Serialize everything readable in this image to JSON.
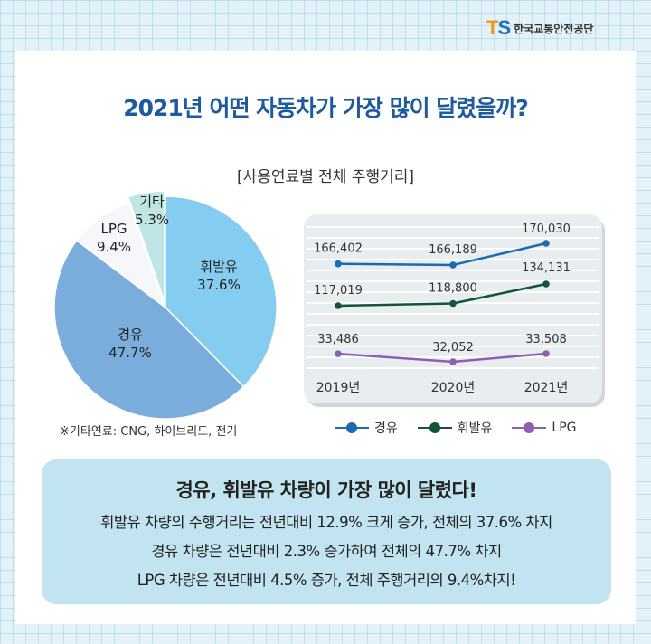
{
  "brand": {
    "mark_t": "T",
    "mark_s": "S",
    "name": "한국교통안전공단"
  },
  "headline": "2021년 어떤 자동차가 가장 많이 달렸을까?",
  "footnote": "※기타연료: CNG, 하이브리드, 전기",
  "colors": {
    "gasoline": "#85cdf0",
    "diesel": "#7aaddc",
    "lpg": "#f5f7fb",
    "other": "#bfe6e4",
    "line_diesel": "#1c6ab2",
    "line_gasoline": "#14553a",
    "line_lpg": "#8e5fb0"
  },
  "chart_data": [
    {
      "type": "pie",
      "title": "[사용연료별 전체 주행거리]",
      "slices": [
        {
          "label": "휘발유",
          "value": 37.6,
          "value_label": "37.6%"
        },
        {
          "label": "경유",
          "value": 47.7,
          "value_label": "47.7%"
        },
        {
          "label": "LPG",
          "value": 9.4,
          "value_label": "9.4%"
        },
        {
          "label": "기타",
          "value": 5.3,
          "value_label": "5.3%"
        }
      ]
    },
    {
      "type": "line",
      "categories": [
        "2019년",
        "2020년",
        "2021년"
      ],
      "series": [
        {
          "name": "경유",
          "values": [
            166402,
            166189,
            170030
          ],
          "labels": [
            "166,402",
            "166,189",
            "170,030"
          ]
        },
        {
          "name": "휘발유",
          "values": [
            117019,
            118800,
            134131
          ],
          "labels": [
            "117,019",
            "118,800",
            "134,131"
          ]
        },
        {
          "name": "LPG",
          "values": [
            33486,
            32052,
            33508
          ],
          "labels": [
            "33,486",
            "32,052",
            "33,508"
          ]
        }
      ],
      "grid": true,
      "legend": "bottom"
    }
  ],
  "summary": {
    "heading": "경유, 휘발유 차량이 가장 많이 달렸다!",
    "lines": [
      "휘발유 차량의 주행거리는 전년대비 12.9% 크게 증가, 전체의 37.6% 차지",
      "경유 차량은 전년대비 2.3% 증가하여 전체의 47.7% 차지",
      "LPG 차량은 전년대비 4.5% 증가, 전체 주행거리의 9.4%차지!"
    ]
  }
}
